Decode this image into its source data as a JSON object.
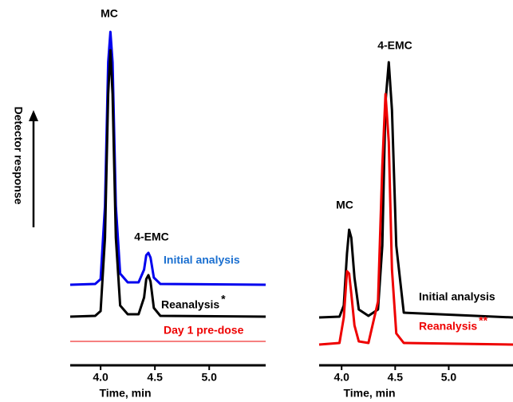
{
  "chart_data": [
    {
      "type": "line",
      "y_label": "Detector response",
      "x_label": "Time, min",
      "annotations": [
        "MC",
        "4-EMC"
      ],
      "x": [
        3.72,
        3.95,
        4.0,
        4.04,
        4.07,
        4.09,
        4.11,
        4.14,
        4.18,
        4.25,
        4.35,
        4.4,
        4.42,
        4.44,
        4.46,
        4.49,
        4.55,
        5.52
      ],
      "xlim": [
        3.72,
        5.52
      ],
      "xticks": [
        {
          "value": 4,
          "label": "4.0"
        },
        4.5,
        {
          "value": 5,
          "label": "5.0"
        }
      ],
      "ylim": [
        0,
        430
      ],
      "series": [
        {
          "name": "Initial analysis",
          "color": "#0000ee",
          "label_color": "#1a6fd0",
          "values": [
            101,
            102,
            108,
            200,
            380,
            418,
            380,
            200,
            115,
            104,
            104,
            120,
            138,
            141,
            135,
            110,
            102,
            101
          ]
        },
        {
          "name": "Reanalysis",
          "note": "*",
          "color": "#000000",
          "label_color": "#000000",
          "values": [
            61,
            62,
            68,
            160,
            340,
            395,
            340,
            160,
            75,
            64,
            64,
            85,
            108,
            113,
            105,
            72,
            62,
            61
          ]
        },
        {
          "name": "Day 1 pre-dose",
          "color": "#ee0000",
          "label_color": "#ee0000",
          "values": [
            30,
            30,
            30,
            30,
            30,
            30,
            30,
            30,
            30,
            30,
            30,
            30,
            30,
            30,
            30,
            30,
            30,
            30
          ]
        }
      ]
    },
    {
      "type": "line",
      "x_label": "Time, min",
      "annotations": [
        "4-EMC",
        "MC"
      ],
      "x": [
        3.79,
        3.98,
        4.02,
        4.05,
        4.07,
        4.09,
        4.12,
        4.16,
        4.25,
        4.34,
        4.38,
        4.41,
        4.44,
        4.47,
        4.51,
        4.58,
        5.6
      ],
      "xlim": [
        3.79,
        5.6
      ],
      "xticks": [
        {
          "value": 4,
          "label": "4.0"
        },
        4.5,
        {
          "value": 5,
          "label": "5.0"
        }
      ],
      "ylim": [
        0,
        430
      ],
      "series": [
        {
          "name": "Initial analysis",
          "color": "#000000",
          "label_color": "#000000",
          "values": [
            60,
            61,
            75,
            140,
            170,
            160,
            110,
            70,
            62,
            70,
            150,
            330,
            380,
            320,
            150,
            66,
            60
          ]
        },
        {
          "name": "Reanalysis",
          "note": "**",
          "color": "#ee0000",
          "label_color": "#ee0000",
          "values": [
            26,
            28,
            60,
            118,
            115,
            90,
            50,
            30,
            28,
            80,
            250,
            340,
            280,
            120,
            40,
            28,
            26
          ]
        }
      ]
    }
  ]
}
